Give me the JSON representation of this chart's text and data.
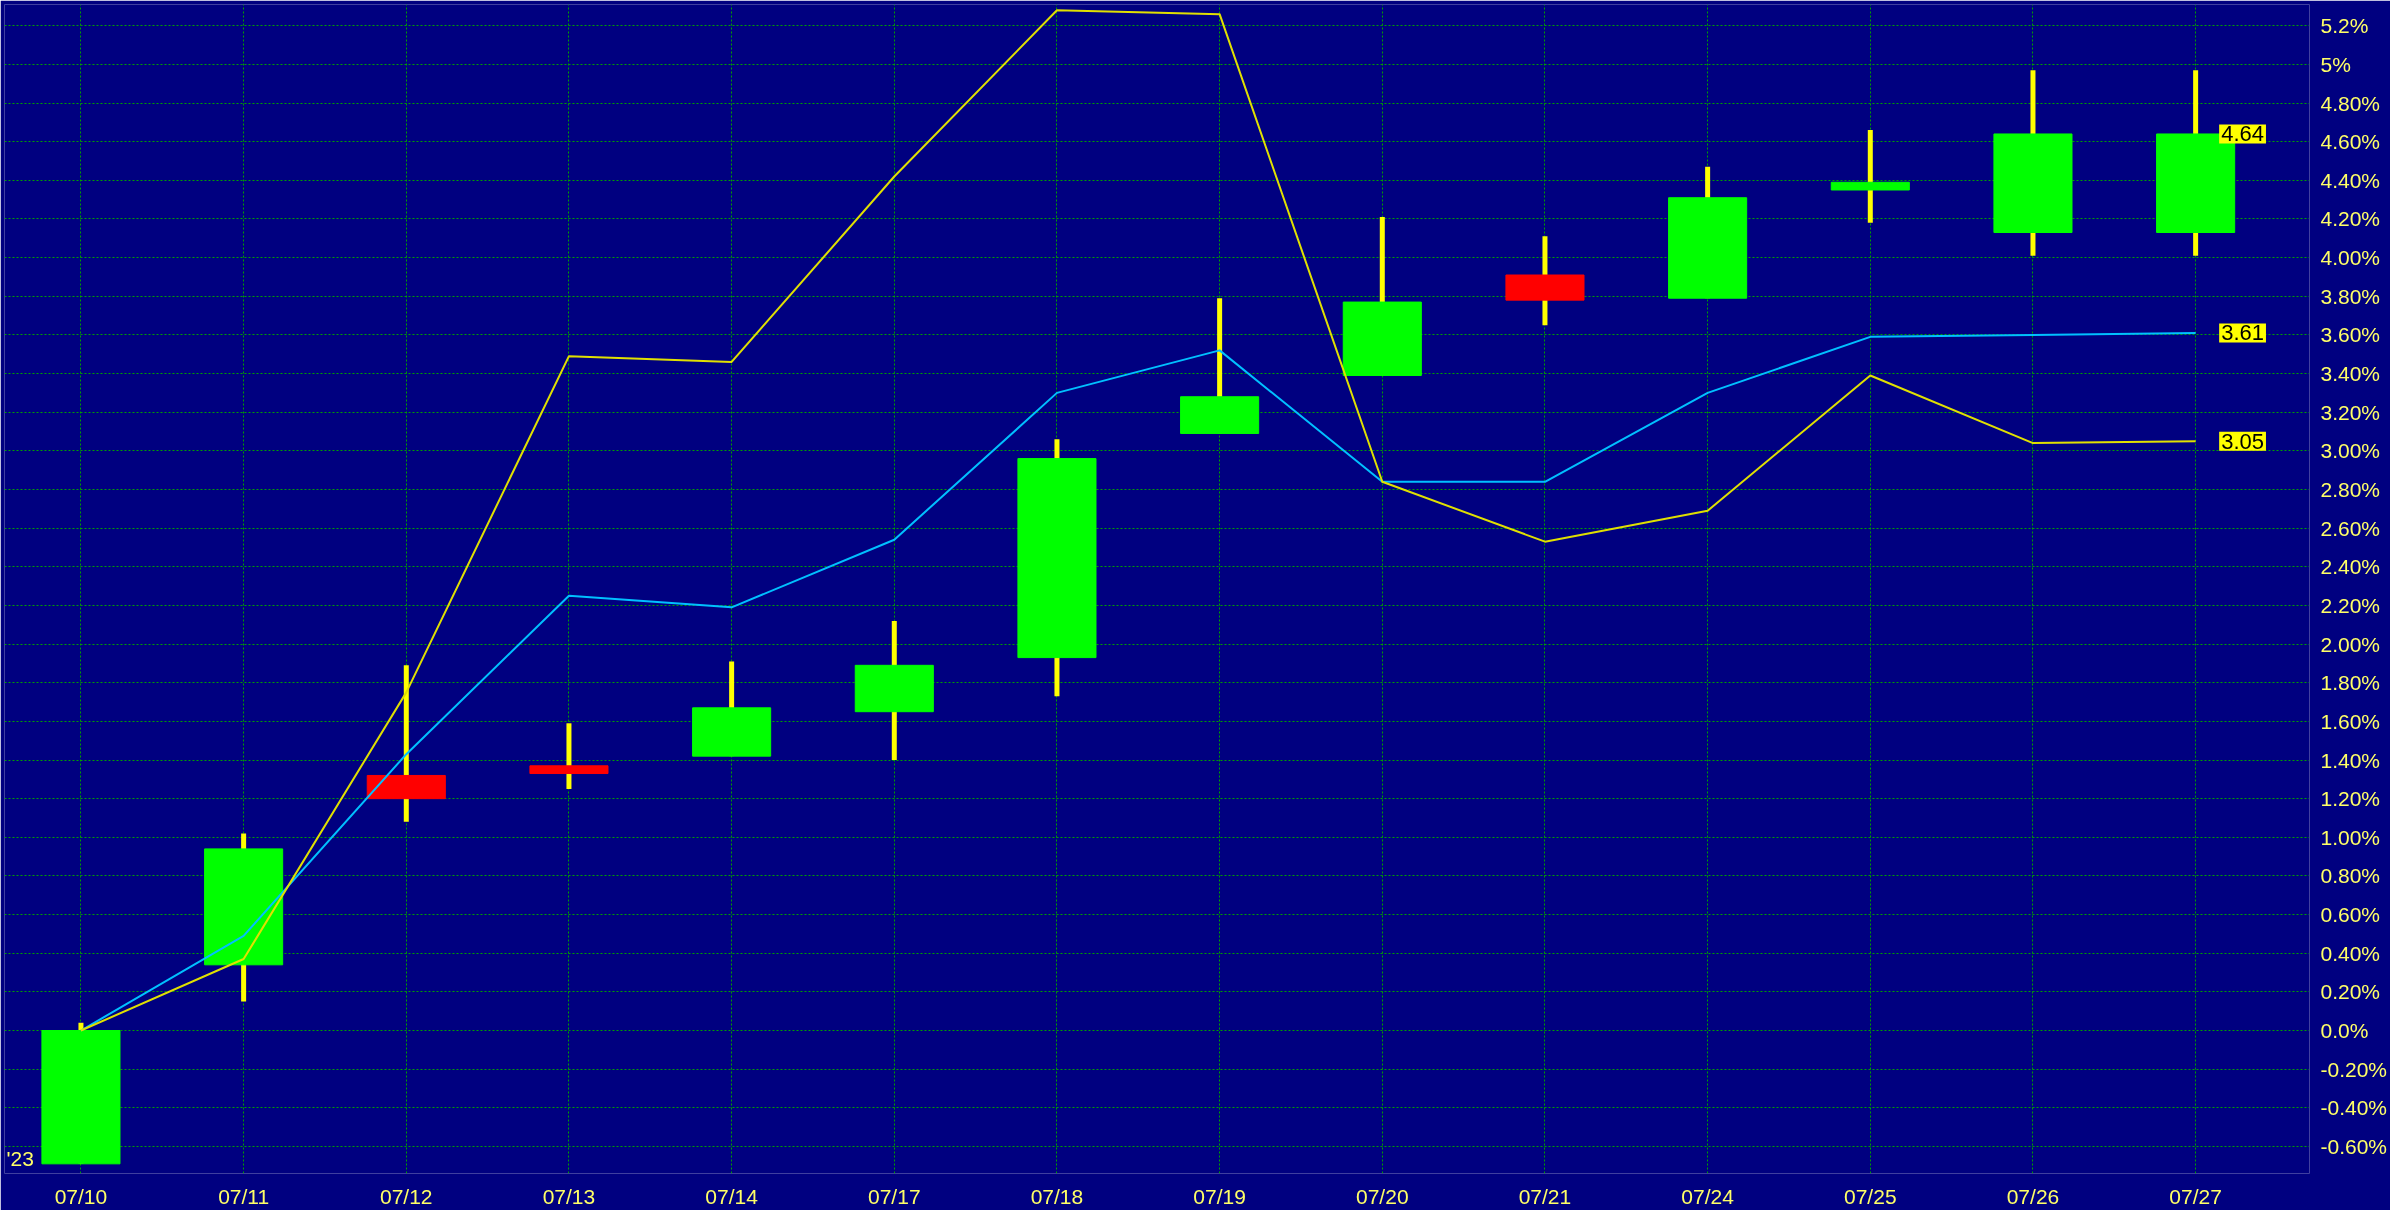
{
  "chart_data": {
    "type": "candlestick",
    "categories": [
      "07/10",
      "07/11",
      "07/12",
      "07/13",
      "07/14",
      "07/17",
      "07/18",
      "07/19",
      "07/20",
      "07/21",
      "07/24",
      "07/25",
      "07/26",
      "07/27"
    ],
    "ohlc": [
      [
        -0.69,
        0.04,
        -0.69,
        0
      ],
      [
        0.34,
        1.02,
        0.15,
        0.94
      ],
      [
        1.32,
        1.89,
        1.08,
        1.2
      ],
      [
        1.37,
        1.59,
        1.25,
        1.33
      ],
      [
        1.42,
        1.91,
        1.42,
        1.67
      ],
      [
        1.65,
        2.12,
        1.4,
        1.89
      ],
      [
        1.93,
        3.06,
        1.73,
        2.96
      ],
      [
        3.09,
        3.79,
        3.09,
        3.28
      ],
      [
        3.39,
        4.21,
        3.39,
        3.77
      ],
      [
        3.91,
        4.11,
        3.65,
        3.78
      ],
      [
        3.79,
        4.47,
        3.79,
        4.31
      ],
      [
        4.35,
        4.66,
        4.18,
        4.39
      ],
      [
        4.13,
        4.97,
        4.01,
        4.64
      ],
      [
        4.13,
        4.97,
        4.01,
        4.64
      ]
    ],
    "colors": [
      "#00ff00",
      "#00ff00",
      "#ff0000",
      "#ff0000",
      "#00ff00",
      "#00ff00",
      "#00ff00",
      "#00ff00",
      "#00ff00",
      "#ff0000",
      "#00ff00",
      "#00ff00",
      "#00ff00",
      "#00ff00"
    ],
    "series": [
      {
        "type": "line",
        "color": "#00c0ff",
        "values": [
          0,
          0.49,
          1.43,
          2.25,
          2.19,
          2.54,
          3.3,
          3.52,
          2.84,
          2.84,
          3.3,
          3.59,
          3.6,
          3.61
        ]
      },
      {
        "type": "line",
        "color": "#e0e000",
        "values": [
          0,
          0.37,
          1.75,
          3.49,
          3.46,
          4.42,
          5.28,
          5.26,
          2.84,
          2.53,
          2.69,
          3.39,
          3.04,
          3.05
        ]
      }
    ],
    "ylim": [
      -0.74,
      5.31
    ],
    "yticks": [
      {
        "value": -0.6,
        "label": "-0.60%"
      },
      {
        "value": -0.4,
        "label": "-0.40%"
      },
      {
        "value": -0.2,
        "label": "-0.20%"
      },
      {
        "value": 0,
        "label": "0.0%"
      },
      {
        "value": 0.2,
        "label": "0.20%"
      },
      {
        "value": 0.4,
        "label": "0.40%"
      },
      {
        "value": 0.6,
        "label": "0.60%"
      },
      {
        "value": 0.8,
        "label": "0.80%"
      },
      {
        "value": 1.0,
        "label": "1.00%"
      },
      {
        "value": 1.2,
        "label": "1.20%"
      },
      {
        "value": 1.4,
        "label": "1.40%"
      },
      {
        "value": 1.6,
        "label": "1.60%"
      },
      {
        "value": 1.8,
        "label": "1.80%"
      },
      {
        "value": 2.0,
        "label": "2.00%"
      },
      {
        "value": 2.2,
        "label": "2.20%"
      },
      {
        "value": 2.4,
        "label": "2.40%"
      },
      {
        "value": 2.6,
        "label": "2.60%"
      },
      {
        "value": 2.8,
        "label": "2.80%"
      },
      {
        "value": 3.0,
        "label": "3.00%"
      },
      {
        "value": 3.2,
        "label": "3.20%"
      },
      {
        "value": 3.4,
        "label": "3.40%"
      },
      {
        "value": 3.6,
        "label": "3.60%"
      },
      {
        "value": 3.8,
        "label": "3.80%"
      },
      {
        "value": 4.0,
        "label": "4.00%"
      },
      {
        "value": 4.2,
        "label": "4.20%"
      },
      {
        "value": 4.4,
        "label": "4.40%"
      },
      {
        "value": 4.6,
        "label": "4.60%"
      },
      {
        "value": 4.8,
        "label": "4.80%"
      },
      {
        "value": 5.0,
        "label": "5%"
      },
      {
        "value": 5.2,
        "label": "5.2%"
      }
    ],
    "annotations": [
      {
        "text": "4.64",
        "x": "07/27",
        "y": 4.64
      },
      {
        "text": "3.61",
        "x": "07/27",
        "y": 3.61
      },
      {
        "text": "3.05",
        "x": "07/27",
        "y": 3.05
      },
      "'23"
    ],
    "grid": true,
    "line_style": "solid",
    "marker": "none"
  }
}
